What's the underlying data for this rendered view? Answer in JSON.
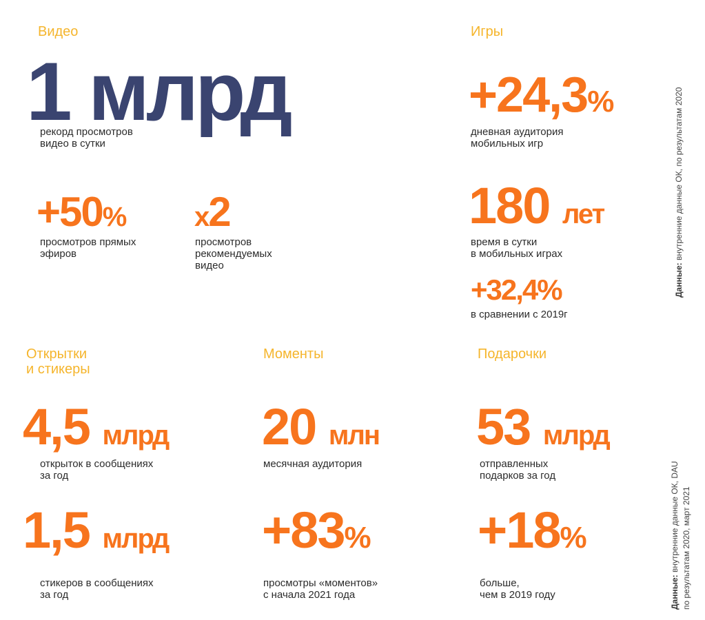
{
  "colors": {
    "accent": "#f7741d",
    "heading": "#f5b52c",
    "navy": "#3a4470"
  },
  "video": {
    "heading": "Видео",
    "main": {
      "value": "1 млрд",
      "caption": "рекорд просмотров\nвидео в сутки"
    },
    "live": {
      "value": "+50",
      "unit": "%",
      "caption": "просмотров прямых\nэфиров"
    },
    "recommended": {
      "prefix": "x",
      "value": "2",
      "caption": "просмотров\nрекомендуемых\nвидео"
    }
  },
  "games": {
    "heading": "Игры",
    "dau": {
      "value": "+24,3",
      "unit": "%",
      "caption": "дневная аудитория\nмобильных игр"
    },
    "time": {
      "value": "180",
      "unit": "лет",
      "caption": "время в сутки\nв мобильных играх"
    },
    "growth": {
      "value": "+32,4%",
      "caption": "в сравнении с 2019г"
    }
  },
  "cards": {
    "heading": "Открытки\nи стикеры",
    "postcards": {
      "value": "4,5",
      "unit": "млрд",
      "caption": "открыток в сообщениях\nза год"
    },
    "stickers": {
      "value": "1,5",
      "unit": "млрд",
      "caption": "стикеров в сообщениях\nза год"
    }
  },
  "moments": {
    "heading": "Моменты",
    "audience": {
      "value": "20",
      "unit": "млн",
      "caption": "месячная аудитория"
    },
    "views": {
      "value": "+83",
      "unit": "%",
      "caption": "просмотры «моментов»\nс начала 2021 года"
    }
  },
  "gifts": {
    "heading": "Подарочки",
    "sent": {
      "value": "53",
      "unit": "млрд",
      "caption": "отправленных\nподарков за год"
    },
    "growth": {
      "value": "+18",
      "unit": "%",
      "caption": "больше,\nчем в 2019 году"
    }
  },
  "notes": {
    "label": "Данные:",
    "top": " внутренние данные ОК,  по результатам 2020",
    "bottom_line1": " внутренние данные ОК, DAU",
    "bottom_line2": "по результатам 2020, март 2021"
  }
}
